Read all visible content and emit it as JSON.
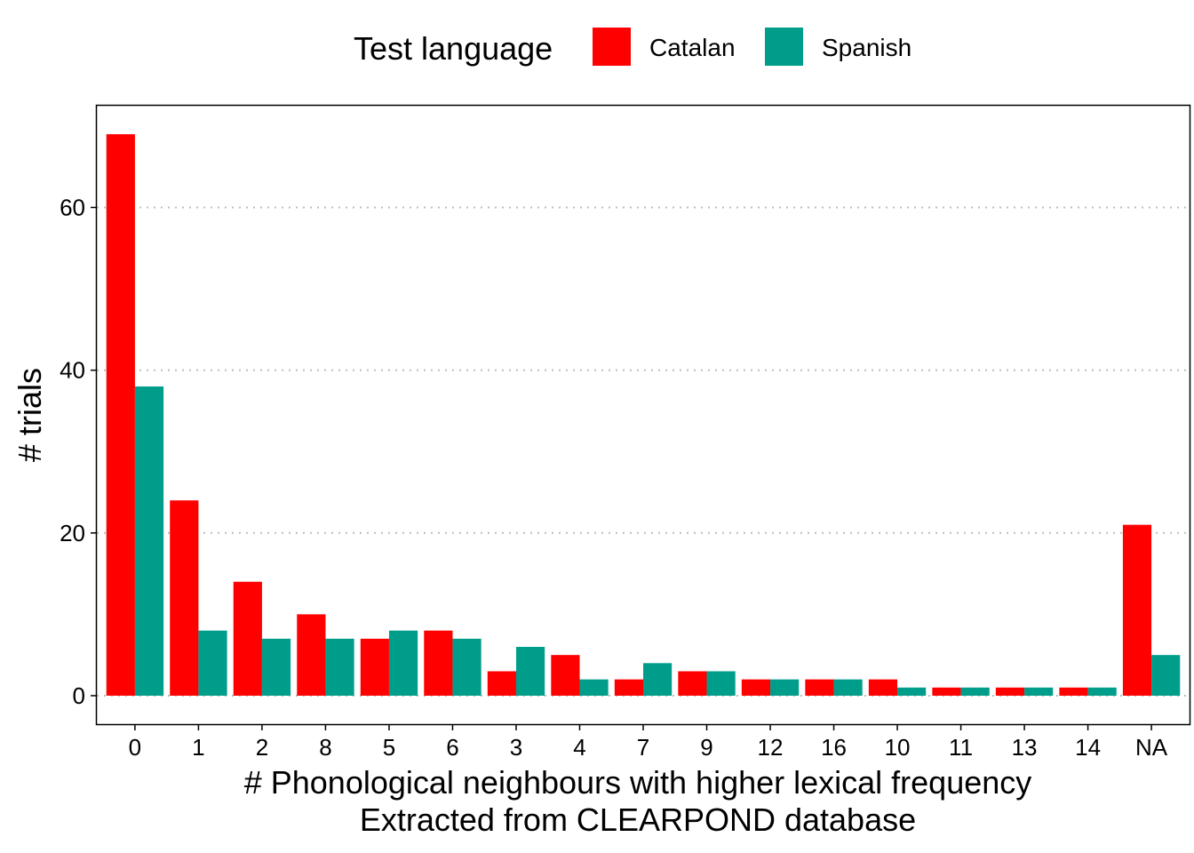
{
  "chart_data": {
    "type": "bar",
    "xlabel": "# Phonological neighbours with higher lexical frequency",
    "xlabel_sub": "Extracted from CLEARPOND database",
    "ylabel": "# trials",
    "legend_title": "Test language",
    "legend_position": "top",
    "categories": [
      "0",
      "1",
      "2",
      "8",
      "5",
      "6",
      "3",
      "4",
      "7",
      "9",
      "12",
      "16",
      "10",
      "11",
      "13",
      "14",
      "NA"
    ],
    "series": [
      {
        "name": "Catalan",
        "color": "#FF0000",
        "values": [
          69,
          24,
          14,
          10,
          7,
          8,
          3,
          5,
          2,
          3,
          2,
          2,
          2,
          1,
          1,
          1,
          21
        ]
      },
      {
        "name": "Spanish",
        "color": "#009E8A",
        "values": [
          38,
          8,
          7,
          7,
          8,
          7,
          6,
          2,
          4,
          3,
          2,
          2,
          1,
          1,
          1,
          1,
          5
        ]
      }
    ],
    "ylim": [
      -3.5,
      72.5
    ],
    "yticks": [
      0,
      20,
      40,
      60
    ],
    "grid": "horizontal-dotted"
  }
}
